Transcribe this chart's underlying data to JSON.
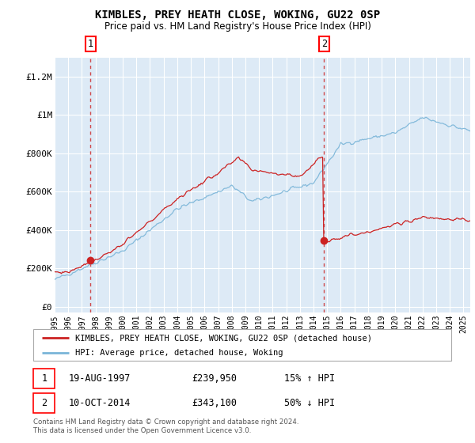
{
  "title": "KIMBLES, PREY HEATH CLOSE, WOKING, GU22 0SP",
  "subtitle": "Price paid vs. HM Land Registry's House Price Index (HPI)",
  "ylabel_ticks": [
    "£0",
    "£200K",
    "£400K",
    "£600K",
    "£800K",
    "£1M",
    "£1.2M"
  ],
  "ytick_vals": [
    0,
    200000,
    400000,
    600000,
    800000,
    1000000,
    1200000
  ],
  "ylim": [
    -30000,
    1300000
  ],
  "xlim_start": 1995.3,
  "xlim_end": 2025.5,
  "xticks": [
    1995,
    1996,
    1997,
    1998,
    1999,
    2000,
    2001,
    2002,
    2003,
    2004,
    2005,
    2006,
    2007,
    2008,
    2009,
    2010,
    2011,
    2012,
    2013,
    2014,
    2015,
    2016,
    2017,
    2018,
    2019,
    2020,
    2021,
    2022,
    2023,
    2024,
    2025
  ],
  "background_color": "#ddeaf6",
  "grid_color": "#ffffff",
  "hpi_color": "#7ab5d8",
  "price_color": "#cc2222",
  "sale1_x": 1997.63,
  "sale1_y": 239950,
  "sale2_x": 2014.78,
  "sale2_y": 343100,
  "sale1_label": "1",
  "sale2_label": "2",
  "sale1_date": "19-AUG-1997",
  "sale1_price": "£239,950",
  "sale1_hpi": "15% ↑ HPI",
  "sale2_date": "10-OCT-2014",
  "sale2_price": "£343,100",
  "sale2_hpi": "50% ↓ HPI",
  "legend_label1": "KIMBLES, PREY HEATH CLOSE, WOKING, GU22 0SP (detached house)",
  "legend_label2": "HPI: Average price, detached house, Woking",
  "footer": "Contains HM Land Registry data © Crown copyright and database right 2024.\nThis data is licensed under the Open Government Licence v3.0."
}
